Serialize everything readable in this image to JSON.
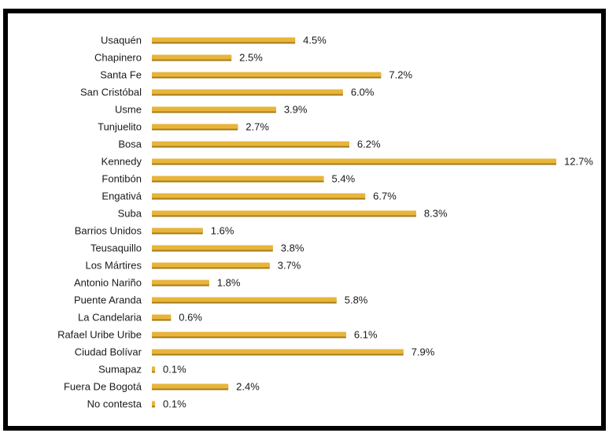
{
  "chart_data": {
    "type": "bar",
    "orientation": "horizontal",
    "title": "",
    "xlabel": "",
    "ylabel": "",
    "value_suffix": "%",
    "categories": [
      "Usaquén",
      "Chapinero",
      "Santa Fe",
      "San Cristóbal",
      "Usme",
      "Tunjuelito",
      "Bosa",
      "Kennedy",
      "Fontibón",
      "Engativá",
      "Suba",
      "Barrios Unidos",
      "Teusaquillo",
      "Los Mártires",
      "Antonio Nariño",
      "Puente Aranda",
      "La Candelaria",
      "Rafael Uribe Uribe",
      "Ciudad Bolívar",
      "Sumapaz",
      "Fuera De Bogotá",
      "No contesta"
    ],
    "values": [
      4.5,
      2.5,
      7.2,
      6.0,
      3.9,
      2.7,
      6.2,
      12.7,
      5.4,
      6.7,
      8.3,
      1.6,
      3.8,
      3.7,
      1.8,
      5.8,
      0.6,
      6.1,
      7.9,
      0.1,
      2.4,
      0.1
    ],
    "value_labels": [
      "4.5%",
      "2.5%",
      "7.2%",
      "6.0%",
      "3.9%",
      "2.7%",
      "6.2%",
      "12.7%",
      "5.4%",
      "6.7%",
      "8.3%",
      "1.6%",
      "3.8%",
      "3.7%",
      "1.8%",
      "5.8%",
      "0.6%",
      "6.1%",
      "7.9%",
      "0.1%",
      "2.4%",
      "0.1%"
    ],
    "xlim": [
      0,
      12.7
    ],
    "grid": false,
    "legend": "none",
    "colors": {
      "bar": "#e8b53a",
      "bar_shadow": "#a67c1b",
      "frame": "#000000",
      "text": "#1a1a1a"
    }
  }
}
